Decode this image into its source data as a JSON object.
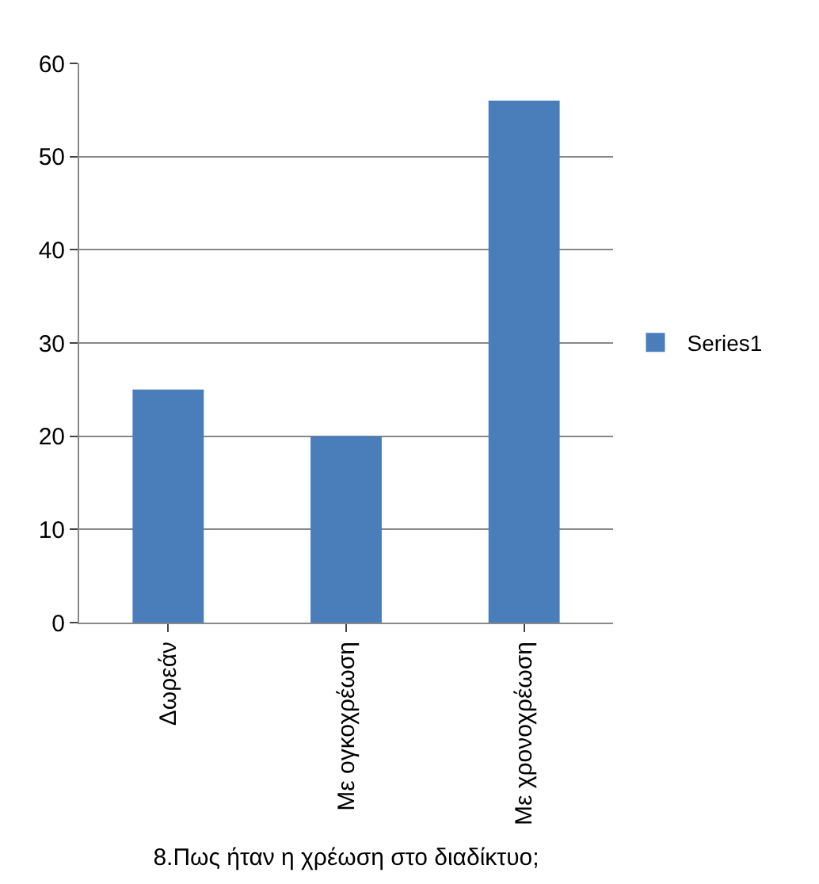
{
  "chart_data": {
    "type": "bar",
    "categories": [
      "Δωρεάν",
      "Με ογκοχρέωση",
      "Με χρονοχρέωση"
    ],
    "series": [
      {
        "name": "Series1",
        "color": "#4a7ebb",
        "values": [
          25,
          20,
          56
        ]
      }
    ],
    "xlabel": "8.Πως ήταν η χρέωση στο διαδίκτυο;",
    "ylim": [
      0,
      60
    ],
    "yticks": [
      0,
      10,
      20,
      30,
      40,
      50,
      60
    ],
    "grid": "y",
    "legend": "right"
  }
}
